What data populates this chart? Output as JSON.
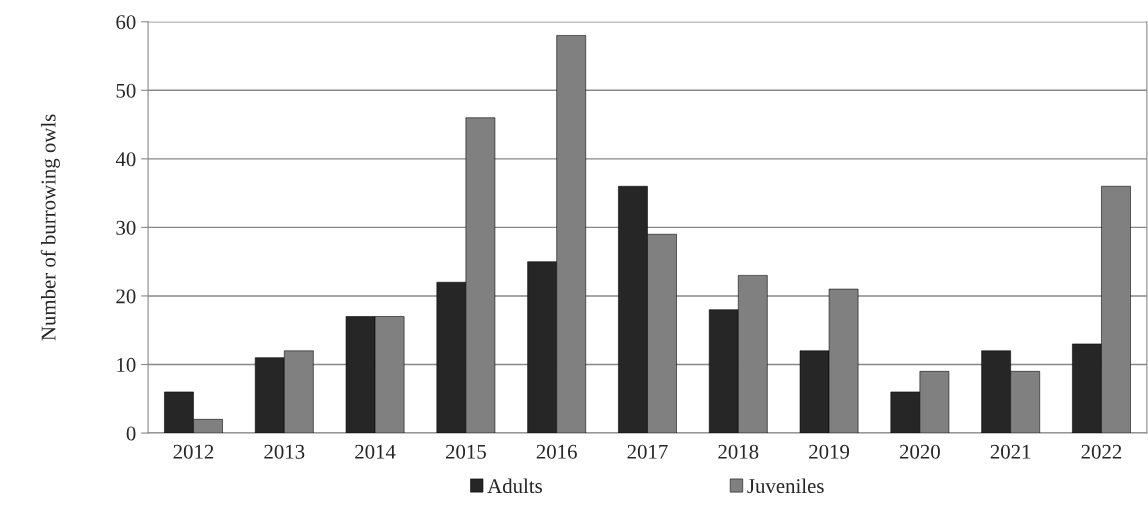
{
  "chart_data": {
    "type": "bar",
    "ylabel": "Number of burrowing owls",
    "categories": [
      "2012",
      "2013",
      "2014",
      "2015",
      "2016",
      "2017",
      "2018",
      "2019",
      "2020",
      "2021",
      "2022"
    ],
    "series": [
      {
        "name": "Adults",
        "color": "#262626",
        "values": [
          6,
          11,
          17,
          22,
          25,
          36,
          18,
          12,
          6,
          12,
          13
        ]
      },
      {
        "name": "Juveniles",
        "color": "#808080",
        "values": [
          2,
          12,
          17,
          46,
          58,
          29,
          23,
          21,
          9,
          9,
          36
        ]
      }
    ],
    "ylim": [
      0,
      60
    ],
    "yticks": [
      0,
      10,
      20,
      30,
      40,
      50,
      60
    ],
    "grid": "y",
    "legend": "bottom"
  }
}
